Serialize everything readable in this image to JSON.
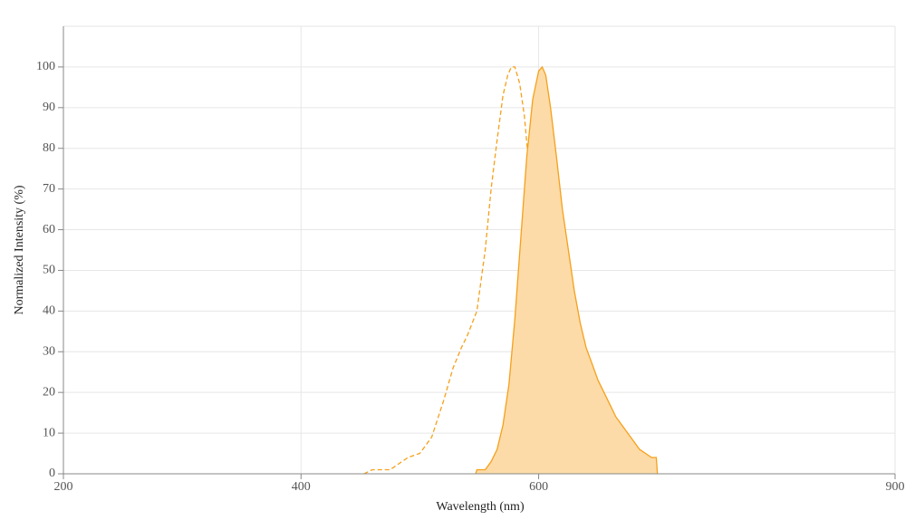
{
  "chart_data": {
    "type": "line",
    "x_label": "Wavelength (nm)",
    "y_label": "Normalized Intensity (%)",
    "xlim": [
      200,
      900
    ],
    "xticks": [
      200,
      400,
      600,
      900
    ],
    "ylim": [
      0,
      110
    ],
    "yticks": [
      0,
      10,
      20,
      30,
      40,
      50,
      60,
      70,
      80,
      90,
      100
    ],
    "grid": true,
    "series": [
      {
        "color": "#f5a01a",
        "line_style": "dashed",
        "fill": false,
        "x": [
          453,
          460,
          475,
          480,
          490,
          500,
          510,
          520,
          528,
          535,
          540,
          548,
          555,
          560,
          565,
          570,
          574,
          577,
          580,
          584,
          588,
          592,
          596,
          599,
          603,
          607,
          610,
          613
        ],
        "values": [
          0,
          1,
          1,
          2,
          4,
          5,
          9,
          18,
          26,
          31,
          34,
          40,
          55,
          70,
          82,
          93,
          98,
          100,
          100,
          96,
          88,
          75,
          55,
          40,
          25,
          15,
          8,
          5
        ]
      },
      {
        "color": "#f5a01a",
        "line_style": "solid",
        "fill": true,
        "fill_color": "#fddba8",
        "x": [
          547,
          548,
          555,
          560,
          565,
          570,
          575,
          580,
          585,
          590,
          595,
          600,
          603,
          606,
          610,
          615,
          620,
          625,
          630,
          635,
          640,
          645,
          650,
          655,
          660,
          665,
          670,
          675,
          680,
          685,
          690,
          695,
          699,
          700
        ],
        "values": [
          0,
          1,
          1,
          3,
          6,
          12,
          22,
          38,
          58,
          78,
          92,
          99,
          100,
          98,
          90,
          78,
          65,
          55,
          45,
          37,
          31,
          27,
          23,
          20,
          17,
          14,
          12,
          10,
          8,
          6,
          5,
          4,
          4,
          0
        ]
      }
    ]
  }
}
